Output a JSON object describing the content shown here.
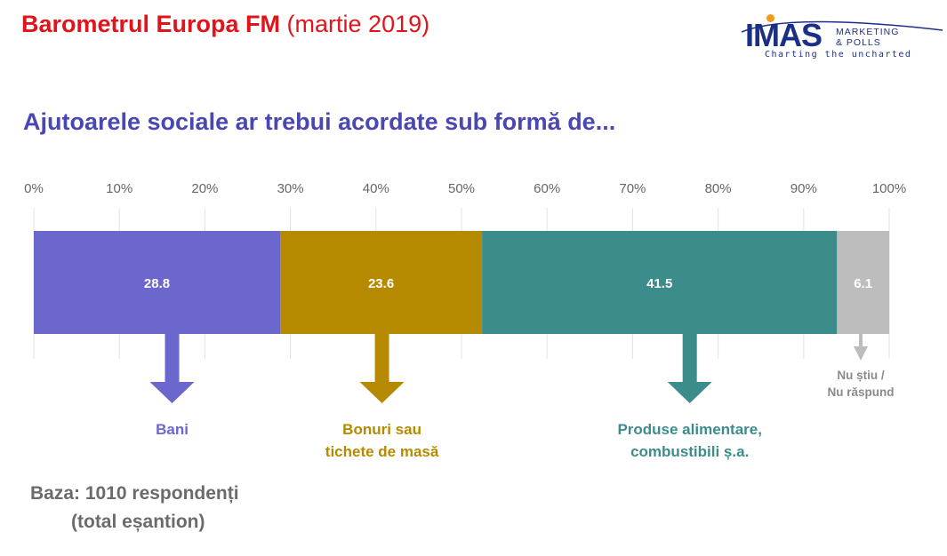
{
  "header": {
    "brand": "Barometrul Europa FM",
    "date": "(martie 2019)"
  },
  "logo": {
    "main": "IMAS",
    "sub1": "MARKETING",
    "sub2": "& POLLS",
    "tagline": "Charting the uncharted",
    "colors": {
      "text": "#1c2f86",
      "dot": "#f29a1c"
    }
  },
  "question": "Ajutoarele sociale ar trebui acordate sub formă de...",
  "chart_data": {
    "type": "bar",
    "orientation": "horizontal-stacked-100",
    "title": "Ajutoarele sociale ar trebui acordate sub formă de...",
    "xlim": [
      0,
      100
    ],
    "x_ticks": [
      "0%",
      "10%",
      "20%",
      "30%",
      "40%",
      "50%",
      "60%",
      "70%",
      "80%",
      "90%",
      "100%"
    ],
    "grid": "vertical",
    "series": [
      {
        "name": "Bani",
        "value": 28.8,
        "label": "28.8",
        "color": "#6b67cc",
        "lines": [
          "Bani"
        ]
      },
      {
        "name": "Bonuri sau tichete de masă",
        "value": 23.6,
        "label": "23.6",
        "color": "#b58a00",
        "lines": [
          "Bonuri sau",
          "tichete de masă"
        ]
      },
      {
        "name": "Produse alimentare, combustibili ș.a.",
        "value": 41.5,
        "label": "41.5",
        "color": "#3d8c8c",
        "lines": [
          "Produse alimentare,",
          "combustibili ș.a."
        ]
      },
      {
        "name": "Nu știu / Nu răspund",
        "value": 6.1,
        "label": "6.1",
        "color": "#bdbdbd",
        "text_color": "#8a8a8a",
        "lines": [
          "Nu știu /",
          "Nu răspund"
        ]
      }
    ]
  },
  "base_note": {
    "line1": "Baza: 1010 respondenți",
    "line2": "(total eșantion)"
  }
}
